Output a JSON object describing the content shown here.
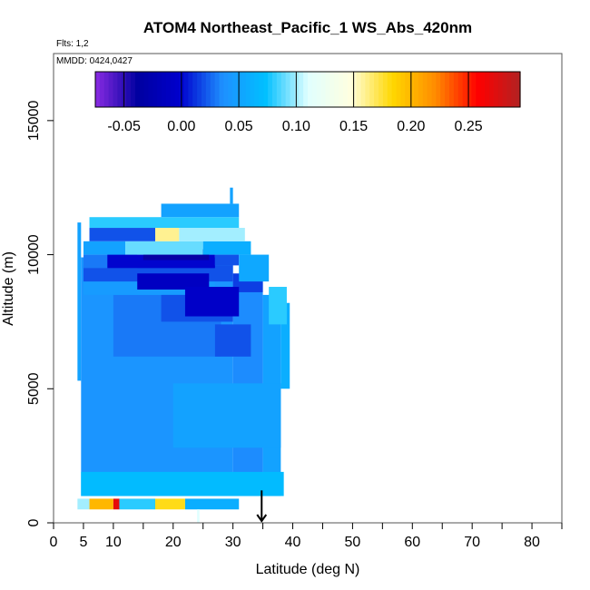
{
  "chart_data": {
    "type": "heatmap",
    "title": "ATOM4 Northeast_Pacific_1 WS_Abs_420nm",
    "flights_label": "Flts: 1,2",
    "dates_label": "MMDD: 0424,0427",
    "xlabel": "Latitude (deg N)",
    "ylabel": "Altitude (m)",
    "xlim": [
      0,
      85
    ],
    "ylim": [
      0,
      17500
    ],
    "x_ticks": [
      0,
      5,
      10,
      20,
      30,
      40,
      50,
      60,
      70,
      80
    ],
    "x_minor_ticks": [
      15,
      25,
      35,
      45,
      55,
      65,
      75,
      85
    ],
    "y_ticks": [
      0,
      5000,
      10000,
      15000
    ],
    "colorbar": {
      "range": [
        -0.075,
        0.295
      ],
      "ticks": [
        -0.05,
        0.0,
        0.05,
        0.1,
        0.15,
        0.2,
        0.25
      ],
      "tick_labels": [
        "-0.05",
        "0.00",
        "0.05",
        "0.10",
        "0.15",
        "0.20",
        "0.25"
      ],
      "colors": [
        "#8a2be2",
        "#0000a0",
        "#0000cd",
        "#1e90ff",
        "#00bfff",
        "#e0ffff",
        "#ffffe0",
        "#ffd700",
        "#ff8c00",
        "#ff0000",
        "#b22222"
      ]
    },
    "marker": {
      "x": 34.8,
      "y_top": 600,
      "y_bottom": 0,
      "direction": "down"
    },
    "cells": [
      {
        "x0": 4,
        "x1": 4.6,
        "y0": 5300,
        "y1": 11200,
        "value": 0.05
      },
      {
        "x0": 4.6,
        "x1": 30,
        "y0": 1000,
        "y1": 9900,
        "value": 0.04
      },
      {
        "x0": 30,
        "x1": 35,
        "y0": 1000,
        "y1": 9000,
        "value": 0.035
      },
      {
        "x0": 35,
        "x1": 38,
        "y0": 1000,
        "y1": 8500,
        "value": 0.05
      },
      {
        "x0": 38,
        "x1": 39.5,
        "y0": 5000,
        "y1": 8200,
        "value": 0.06
      },
      {
        "x0": 20,
        "x1": 38,
        "y0": 2800,
        "y1": 5200,
        "value": 0.05
      },
      {
        "x0": 10,
        "x1": 28,
        "y0": 6200,
        "y1": 8500,
        "value": 0.03
      },
      {
        "x0": 5,
        "x1": 27,
        "y0": 8500,
        "y1": 9300,
        "value": 0.045
      },
      {
        "x0": 18,
        "x1": 30,
        "y0": 7500,
        "y1": 8500,
        "value": 0.02
      },
      {
        "x0": 27,
        "x1": 33,
        "y0": 6200,
        "y1": 7400,
        "value": 0.02
      },
      {
        "x0": 30,
        "x1": 35,
        "y0": 8600,
        "y1": 9300,
        "value": 0.015
      },
      {
        "x0": 5,
        "x1": 30,
        "y0": 9000,
        "y1": 9600,
        "value": 0.02
      },
      {
        "x0": 14,
        "x1": 26,
        "y0": 8700,
        "y1": 9300,
        "value": -0.01
      },
      {
        "x0": 22,
        "x1": 31,
        "y0": 7700,
        "y1": 8800,
        "value": -0.005
      },
      {
        "x0": 5,
        "x1": 14,
        "y0": 9500,
        "y1": 10000,
        "value": 0.03
      },
      {
        "x0": 9,
        "x1": 27,
        "y0": 9500,
        "y1": 10000,
        "value": 0.0
      },
      {
        "x0": 15,
        "x1": 26,
        "y0": 9800,
        "y1": 10200,
        "value": -0.04
      },
      {
        "x0": 27,
        "x1": 31,
        "y0": 9600,
        "y1": 10000,
        "value": 0.02
      },
      {
        "x0": 31,
        "x1": 36,
        "y0": 9000,
        "y1": 10000,
        "value": 0.055
      },
      {
        "x0": 36,
        "x1": 39,
        "y0": 7400,
        "y1": 8800,
        "value": 0.08
      },
      {
        "x0": 5,
        "x1": 12,
        "y0": 10000,
        "y1": 10500,
        "value": 0.05
      },
      {
        "x0": 12,
        "x1": 25,
        "y0": 10000,
        "y1": 10500,
        "value": 0.09
      },
      {
        "x0": 25,
        "x1": 33,
        "y0": 10000,
        "y1": 10500,
        "value": 0.06
      },
      {
        "x0": 6,
        "x1": 17,
        "y0": 10500,
        "y1": 11000,
        "value": 0.02
      },
      {
        "x0": 17,
        "x1": 21,
        "y0": 10500,
        "y1": 11000,
        "value": 0.16
      },
      {
        "x0": 21,
        "x1": 32,
        "y0": 10500,
        "y1": 11000,
        "value": 0.1
      },
      {
        "x0": 6,
        "x1": 31,
        "y0": 11000,
        "y1": 11400,
        "value": 0.08
      },
      {
        "x0": 18,
        "x1": 31,
        "y0": 11400,
        "y1": 11900,
        "value": 0.05
      },
      {
        "x0": 29.5,
        "x1": 30,
        "y0": 11900,
        "y1": 12500,
        "value": 0.05
      },
      {
        "x0": 4.6,
        "x1": 38.5,
        "y0": 1000,
        "y1": 1900,
        "value": 0.07
      },
      {
        "x0": 4,
        "x1": 6,
        "y0": 500,
        "y1": 900,
        "value": 0.1
      },
      {
        "x0": 6,
        "x1": 10,
        "y0": 500,
        "y1": 900,
        "value": 0.2
      },
      {
        "x0": 10,
        "x1": 11,
        "y0": 500,
        "y1": 900,
        "value": 0.27
      },
      {
        "x0": 11,
        "x1": 17,
        "y0": 500,
        "y1": 900,
        "value": 0.08
      },
      {
        "x0": 17,
        "x1": 22,
        "y0": 500,
        "y1": 900,
        "value": 0.18
      },
      {
        "x0": 22,
        "x1": 31,
        "y0": 500,
        "y1": 900,
        "value": 0.06
      },
      {
        "x0": 24,
        "x1": 24.4,
        "y0": 0,
        "y1": 500,
        "value": 0.11
      }
    ]
  }
}
